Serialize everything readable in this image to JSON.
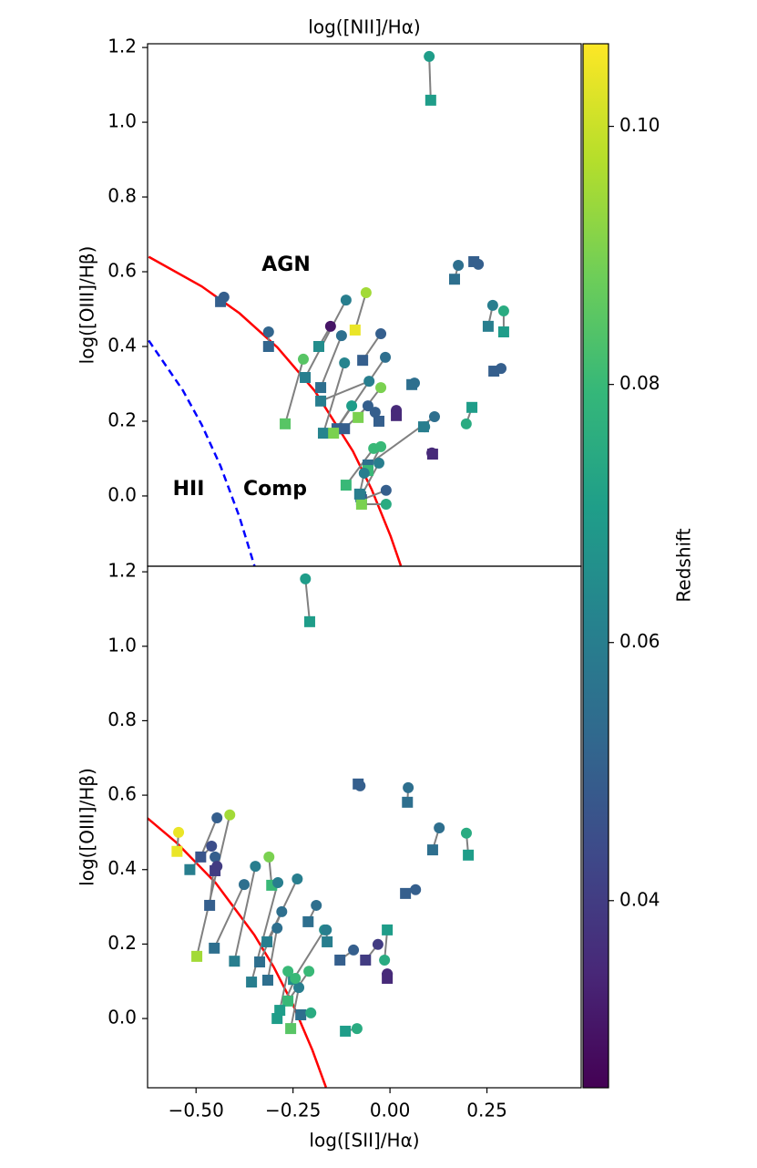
{
  "chart_data": [
    {
      "type": "scatter",
      "title": "log([NII]/Hα)",
      "ylabel": "log([OIII]/Hβ)",
      "annotations": [
        "AGN",
        "HII",
        "Comp"
      ],
      "xlim": [
        -0.643,
        0.504
      ],
      "ylim": [
        -0.188,
        1.21
      ],
      "yticks": [
        {
          "value": 0,
          "label": "0.0"
        },
        0.2,
        0.4,
        0.6,
        0.8,
        {
          "value": 1,
          "label": "1.0"
        },
        1.2
      ],
      "curves": [
        {
          "color": "#ff0000",
          "dash": false,
          "x": [
            -0.64,
            -0.5,
            -0.4,
            -0.3,
            -0.2,
            -0.1,
            -0.05,
            0.0,
            0.027
          ],
          "y": [
            0.64,
            0.561,
            0.489,
            0.398,
            0.28,
            0.12,
            0.017,
            -0.108,
            -0.187
          ]
        },
        {
          "color": "#0000ff",
          "dash": true,
          "x": [
            -0.64,
            -0.55,
            -0.5,
            -0.45,
            -0.4,
            -0.36
          ],
          "y": [
            0.416,
            0.283,
            0.191,
            0.08,
            -0.056,
            -0.188
          ]
        }
      ],
      "circles": {
        "x": [
          0.102,
          -0.441,
          -0.323,
          -0.118,
          -0.231,
          -0.065,
          -0.159,
          -0.13,
          -0.026,
          -0.014,
          -0.057,
          -0.122,
          -0.103,
          -0.026,
          -0.06,
          -0.041,
          0.015,
          0.063,
          0.09,
          0.116,
          0.109,
          -0.045,
          -0.026,
          -0.031,
          -0.012,
          -0.012,
          0.179,
          0.232,
          0.27,
          0.299,
          0.292,
          0.2,
          -0.07
        ],
        "y": [
          1.176,
          0.532,
          0.439,
          0.524,
          0.366,
          0.544,
          0.454,
          0.429,
          0.434,
          0.371,
          0.307,
          0.356,
          0.241,
          0.29,
          0.241,
          0.224,
          0.229,
          0.302,
          0.185,
          0.212,
          0.115,
          0.127,
          0.132,
          0.088,
          0.015,
          -0.022,
          0.617,
          0.62,
          0.51,
          0.495,
          0.341,
          0.193,
          0.061
        ],
        "z": [
          0.07,
          0.05,
          0.052,
          0.06,
          0.085,
          0.095,
          0.03,
          0.055,
          0.05,
          0.055,
          0.06,
          0.062,
          0.07,
          0.09,
          0.05,
          0.05,
          0.035,
          0.055,
          0.06,
          0.055,
          0.035,
          0.08,
          0.08,
          0.06,
          0.05,
          0.075,
          0.055,
          0.05,
          0.06,
          0.075,
          0.05,
          0.075,
          0.06
        ]
      },
      "squares": {
        "x": [
          0.106,
          -0.45,
          -0.323,
          -0.226,
          -0.279,
          -0.094,
          -0.19,
          -0.185,
          -0.074,
          -0.142,
          -0.185,
          -0.178,
          -0.151,
          -0.086,
          -0.122,
          -0.031,
          0.015,
          0.056,
          0.087,
          -0.06,
          0.111,
          -0.118,
          -0.06,
          -0.079,
          -0.077,
          -0.077,
          0.169,
          0.22,
          0.258,
          0.299,
          0.273,
          0.215,
          -0.082
        ],
        "y": [
          1.059,
          0.52,
          0.4,
          0.317,
          0.193,
          0.444,
          0.4,
          0.29,
          0.363,
          0.18,
          0.254,
          0.168,
          0.168,
          0.21,
          0.18,
          0.2,
          0.215,
          0.298,
          0.185,
          0.083,
          0.112,
          0.029,
          0.068,
          -0.002,
          -0.01,
          -0.022,
          0.58,
          0.627,
          0.454,
          0.439,
          0.334,
          0.237,
          0.005
        ],
        "z": [
          0.07,
          0.05,
          0.052,
          0.06,
          0.085,
          0.104,
          0.065,
          0.055,
          0.05,
          0.05,
          0.06,
          0.062,
          0.09,
          0.09,
          0.05,
          0.05,
          0.035,
          0.055,
          0.06,
          0.055,
          0.035,
          0.08,
          0.08,
          0.06,
          0.05,
          0.09,
          0.055,
          0.05,
          0.06,
          0.07,
          0.05,
          0.07,
          0.06
        ]
      }
    },
    {
      "type": "scatter",
      "xlabel": "log([SII]/Hα)",
      "ylabel": "log([OIII]/Hβ)",
      "xlim": [
        -0.625,
        0.493
      ],
      "ylim": [
        -0.186,
        1.215
      ],
      "xticks": [
        {
          "value": -0.5,
          "label": "−0.50"
        },
        {
          "value": -0.25,
          "label": "−0.25"
        },
        {
          "value": 0,
          "label": "0.00"
        },
        0.25
      ],
      "yticks": [
        {
          "value": 0,
          "label": "0.0"
        },
        0.2,
        0.4,
        0.6,
        0.8,
        {
          "value": 1,
          "label": "1.0"
        },
        1.2
      ],
      "curves": [
        {
          "color": "#ff0000",
          "dash": false,
          "x": [
            -0.625,
            -0.55,
            -0.45,
            -0.35,
            -0.3,
            -0.25,
            -0.2,
            -0.165
          ],
          "y": [
            0.538,
            0.472,
            0.365,
            0.225,
            0.139,
            0.037,
            -0.085,
            -0.185
          ]
        }
      ],
      "circles": {
        "x": [
          -0.218,
          -0.077,
          0.047,
          0.127,
          0.197,
          0.066,
          -0.446,
          -0.413,
          -0.545,
          -0.46,
          -0.451,
          -0.347,
          -0.376,
          -0.289,
          -0.239,
          -0.279,
          -0.291,
          -0.19,
          -0.169,
          -0.094,
          -0.164,
          -0.014,
          -0.007,
          -0.031,
          -0.209,
          -0.263,
          -0.235,
          -0.204,
          -0.085,
          -0.446,
          -0.312,
          -0.244
        ],
        "y": [
          1.181,
          0.625,
          0.62,
          0.512,
          0.498,
          0.346,
          0.539,
          0.547,
          0.5,
          0.463,
          0.434,
          0.409,
          0.36,
          0.365,
          0.375,
          0.287,
          0.243,
          0.304,
          0.238,
          0.184,
          0.238,
          0.157,
          0.12,
          0.199,
          0.127,
          0.127,
          0.083,
          0.015,
          -0.027,
          0.409,
          0.434,
          0.108
        ],
        "z": [
          0.07,
          0.05,
          0.055,
          0.055,
          0.075,
          0.05,
          0.05,
          0.095,
          0.104,
          0.045,
          0.05,
          0.06,
          0.055,
          0.06,
          0.06,
          0.055,
          0.055,
          0.055,
          0.065,
          0.05,
          0.06,
          0.075,
          0.035,
          0.04,
          0.08,
          0.08,
          0.06,
          0.075,
          0.075,
          0.04,
          0.09,
          0.08
        ]
      },
      "squares": {
        "x": [
          -0.207,
          -0.082,
          0.045,
          0.11,
          0.202,
          0.04,
          -0.488,
          -0.498,
          -0.549,
          -0.516,
          -0.465,
          -0.401,
          -0.453,
          -0.357,
          -0.317,
          -0.336,
          -0.315,
          -0.211,
          -0.249,
          -0.129,
          -0.162,
          -0.007,
          -0.007,
          -0.063,
          -0.263,
          -0.284,
          -0.256,
          -0.23,
          -0.115,
          -0.451,
          -0.305,
          -0.291
        ],
        "y": [
          1.066,
          0.63,
          0.581,
          0.453,
          0.439,
          0.336,
          0.434,
          0.167,
          0.449,
          0.4,
          0.304,
          0.154,
          0.189,
          0.098,
          0.206,
          0.152,
          0.103,
          0.26,
          0.105,
          0.157,
          0.206,
          0.238,
          0.108,
          0.157,
          0.047,
          0.022,
          -0.027,
          0.01,
          -0.034,
          0.397,
          0.358,
          0.0
        ],
        "z": [
          0.07,
          0.05,
          0.055,
          0.055,
          0.07,
          0.05,
          0.047,
          0.095,
          0.104,
          0.06,
          0.05,
          0.06,
          0.055,
          0.06,
          0.06,
          0.055,
          0.055,
          0.055,
          0.065,
          0.05,
          0.06,
          0.07,
          0.035,
          0.04,
          0.08,
          0.07,
          0.085,
          0.055,
          0.07,
          0.04,
          0.08,
          0.07
        ]
      }
    }
  ],
  "colorbar": {
    "label": "Redshift",
    "zlim": [
      0.0255,
      0.1064
    ],
    "zticks": [
      0.04,
      0.06,
      0.08,
      {
        "value": 0.1,
        "label": "0.10"
      }
    ],
    "colors": [
      "#440154",
      "#482878",
      "#3e4989",
      "#31688e",
      "#26828e",
      "#1f9e89",
      "#35b779",
      "#6ece58",
      "#b5de2b",
      "#fde725"
    ]
  }
}
